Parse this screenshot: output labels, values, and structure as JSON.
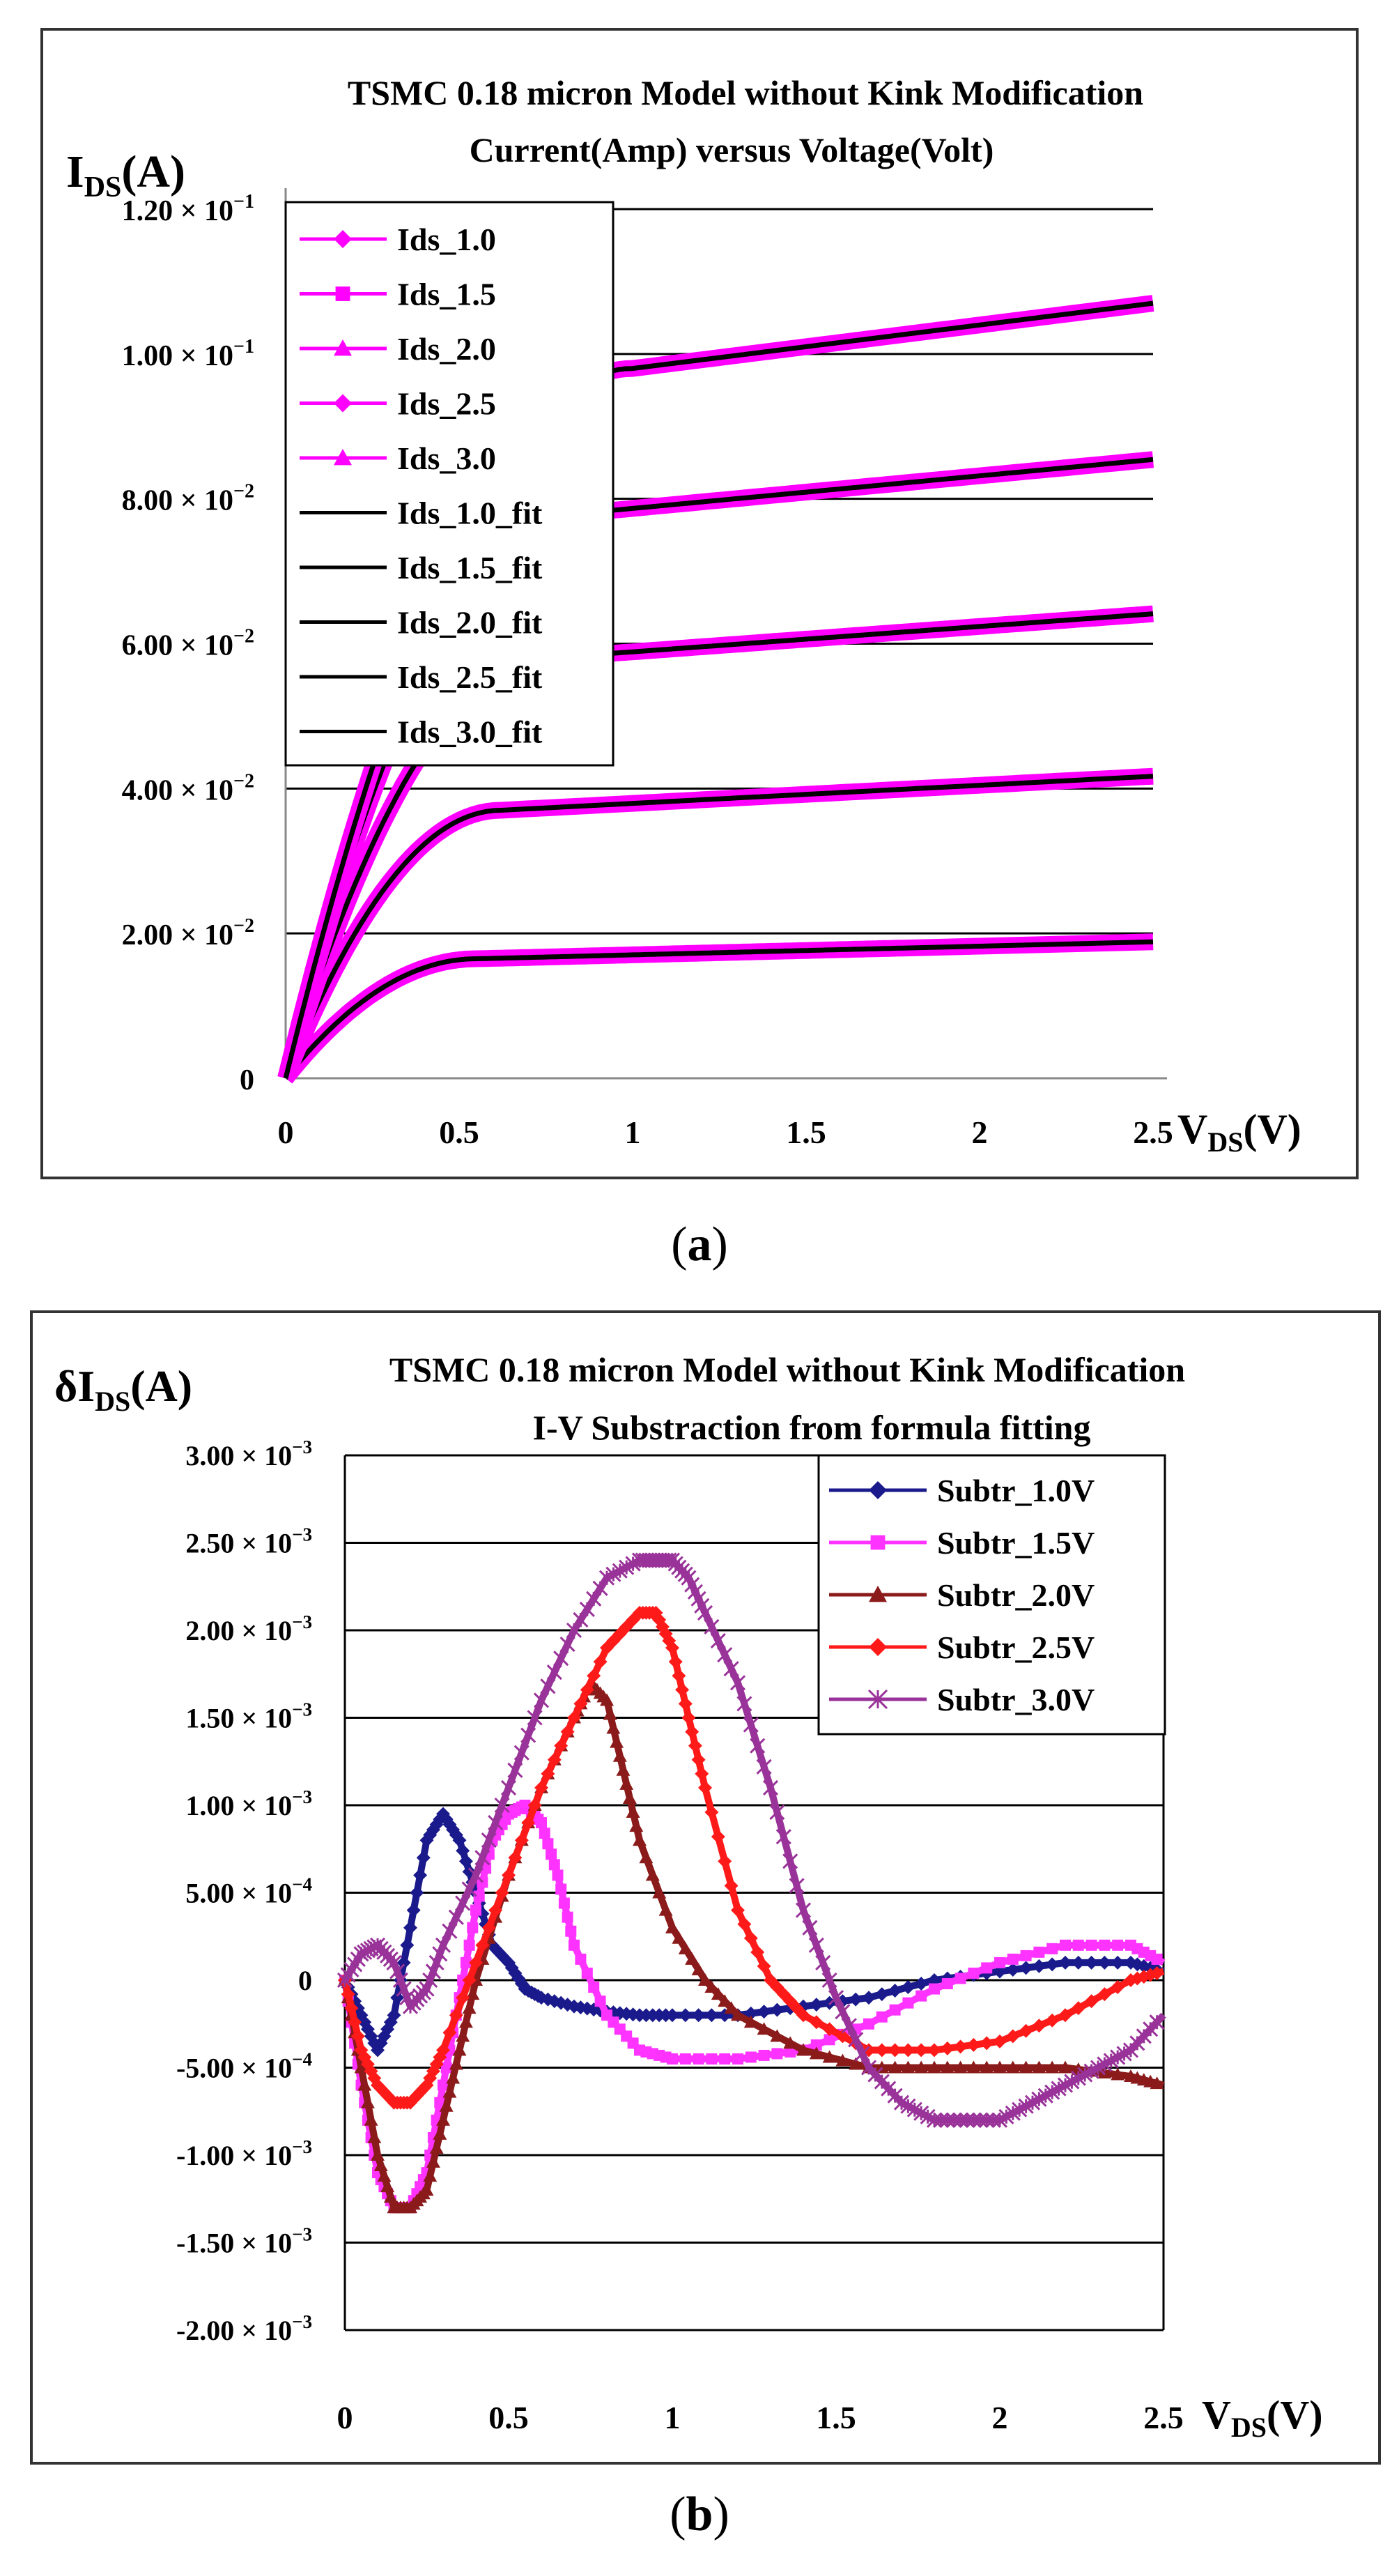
{
  "chart_data": [
    {
      "id": "a",
      "type": "line",
      "caption_open": "(",
      "caption_letter": "a",
      "caption_close": ")",
      "title_lines": [
        "TSMC 0.18 micron Model without Kink Modification",
        "Current(Amp) versus Voltage(Volt)"
      ],
      "ylabel_main": "I",
      "ylabel_sub": "DS",
      "ylabel_unit": "(A)",
      "xlabel_main": "V",
      "xlabel_sub": "DS",
      "xlabel_unit": "(V)",
      "xlim": [
        0,
        2.5
      ],
      "ylim": [
        0,
        0.12
      ],
      "xticks": [
        0,
        0.5,
        1,
        1.5,
        2,
        2.5
      ],
      "xtick_labels": [
        "0",
        "0.5",
        "1",
        "1.5",
        "2",
        "2.5"
      ],
      "yticks": [
        0,
        0.02,
        0.04,
        0.06,
        0.08,
        0.1,
        0.12
      ],
      "ytick_mantissas": [
        "0",
        "2.00 × 10",
        "4.00 × 10",
        "6.00 × 10",
        "8.00 × 10",
        "1.00 × 10",
        "1.20 × 10"
      ],
      "ytick_exponents": [
        "",
        "−2",
        "−2",
        "−2",
        "−2",
        "−1",
        "−1"
      ],
      "gridlines": "horizontal",
      "legend_position": "top-left",
      "series": [
        {
          "name": "Ids_1.0",
          "color": "#ff00ff",
          "marker": "diamond",
          "kind": "data",
          "vsat": 0.55,
          "isat": 0.0165,
          "slope": 0.0012
        },
        {
          "name": "Ids_1.5",
          "color": "#ff00ff",
          "marker": "square",
          "kind": "data",
          "vsat": 0.62,
          "isat": 0.037,
          "slope": 0.0025
        },
        {
          "name": "Ids_2.0",
          "color": "#ff00ff",
          "marker": "triangle",
          "kind": "data",
          "vsat": 0.75,
          "isat": 0.058,
          "slope": 0.0035
        },
        {
          "name": "Ids_2.5",
          "color": "#ff00ff",
          "marker": "diamond",
          "kind": "data",
          "vsat": 0.85,
          "isat": 0.078,
          "slope": 0.0045
        },
        {
          "name": "Ids_3.0",
          "color": "#ff00ff",
          "marker": "triangle",
          "kind": "data",
          "vsat": 1.0,
          "isat": 0.098,
          "slope": 0.006
        },
        {
          "name": "Ids_1.0_fit",
          "color": "#000000",
          "marker": "dash",
          "kind": "fit"
        },
        {
          "name": "Ids_1.5_fit",
          "color": "#000000",
          "marker": "dash",
          "kind": "fit"
        },
        {
          "name": "Ids_2.0_fit",
          "color": "#000000",
          "marker": "dash",
          "kind": "fit"
        },
        {
          "name": "Ids_2.5_fit",
          "color": "#000000",
          "marker": "dash",
          "kind": "fit"
        },
        {
          "name": "Ids_3.0_fit",
          "color": "#000000",
          "marker": "dash",
          "kind": "fit"
        }
      ]
    },
    {
      "id": "b",
      "type": "line",
      "caption_open": "(",
      "caption_letter": "b",
      "caption_close": ")",
      "title_lines": [
        "TSMC 0.18 micron Model without Kink Modification",
        "I-V Substraction from formula fitting"
      ],
      "ylabel_main": "δI",
      "ylabel_sub": "DS",
      "ylabel_unit": "(A)",
      "xlabel_main": "V",
      "xlabel_sub": "DS",
      "xlabel_unit": "(V)",
      "xlim": [
        0,
        2.5
      ],
      "ylim": [
        -0.002,
        0.003
      ],
      "xticks": [
        0,
        0.5,
        1,
        1.5,
        2,
        2.5
      ],
      "xtick_labels": [
        "0",
        "0.5",
        "1",
        "1.5",
        "2",
        "2.5"
      ],
      "yticks": [
        -0.002,
        -0.0015,
        -0.001,
        -0.0005,
        0,
        0.0005,
        0.001,
        0.0015,
        0.002,
        0.0025,
        0.003
      ],
      "ytick_mantissas": [
        "-2.00 × 10",
        "-1.50 × 10",
        "-1.00 × 10",
        "-5.00 × 10",
        "0",
        "5.00 × 10",
        "1.00 × 10",
        "1.50 × 10",
        "2.00 × 10",
        "2.50 × 10",
        "3.00 × 10"
      ],
      "ytick_exponents": [
        "−3",
        "−3",
        "−3",
        "−4",
        "",
        "−4",
        "−3",
        "−3",
        "−3",
        "−3",
        "−3"
      ],
      "gridlines": "horizontal",
      "legend_position": "top-right",
      "series": [
        {
          "name": "Subtr_1.0V",
          "color": "#1a1a8c",
          "marker": "diamond",
          "x": [
            0,
            0.05,
            0.1,
            0.15,
            0.2,
            0.25,
            0.3,
            0.35,
            0.4,
            0.45,
            0.5,
            0.55,
            0.6,
            0.7,
            0.8,
            0.9,
            1.0,
            1.2,
            1.4,
            1.6,
            1.8,
            2.0,
            2.2,
            2.4,
            2.5
          ],
          "y": [
            0,
            -0.0002,
            -0.0004,
            -0.0002,
            0.0003,
            0.0008,
            0.00095,
            0.0008,
            0.0005,
            0.0002,
            0.0001,
            -5e-05,
            -0.0001,
            -0.00015,
            -0.00018,
            -0.0002,
            -0.0002,
            -0.0002,
            -0.00015,
            -0.0001,
            0.0,
            5e-05,
            0.0001,
            0.0001,
            5e-05
          ]
        },
        {
          "name": "Subtr_1.5V",
          "color": "#ff33ff",
          "marker": "square",
          "x": [
            0,
            0.05,
            0.1,
            0.15,
            0.2,
            0.25,
            0.3,
            0.35,
            0.4,
            0.45,
            0.5,
            0.55,
            0.6,
            0.65,
            0.7,
            0.8,
            0.9,
            1.0,
            1.2,
            1.4,
            1.6,
            1.8,
            2.0,
            2.2,
            2.4,
            2.5
          ],
          "y": [
            0,
            -0.0006,
            -0.0011,
            -0.0013,
            -0.0013,
            -0.0011,
            -0.0006,
            -0.0001,
            0.0004,
            0.0008,
            0.00095,
            0.001,
            0.0009,
            0.0006,
            0.0002,
            -0.0002,
            -0.0004,
            -0.00045,
            -0.00045,
            -0.0004,
            -0.00025,
            -5e-05,
            0.0001,
            0.0002,
            0.0002,
            0.0001
          ]
        },
        {
          "name": "Subtr_2.0V",
          "color": "#8b1a1a",
          "marker": "triangle",
          "x": [
            0,
            0.05,
            0.1,
            0.15,
            0.2,
            0.25,
            0.3,
            0.35,
            0.4,
            0.5,
            0.6,
            0.7,
            0.75,
            0.8,
            0.85,
            0.9,
            1.0,
            1.1,
            1.2,
            1.4,
            1.6,
            1.8,
            2.0,
            2.2,
            2.4,
            2.5
          ],
          "y": [
            0,
            -0.0005,
            -0.001,
            -0.0013,
            -0.0013,
            -0.0012,
            -0.0008,
            -0.0004,
            0.0,
            0.0006,
            0.0011,
            0.0015,
            0.0017,
            0.0016,
            0.0012,
            0.0008,
            0.0003,
            0.0,
            -0.0002,
            -0.0004,
            -0.0005,
            -0.0005,
            -0.0005,
            -0.0005,
            -0.00055,
            -0.0006
          ]
        },
        {
          "name": "Subtr_2.5V",
          "color": "#ff1a1a",
          "marker": "diamond",
          "x": [
            0,
            0.05,
            0.1,
            0.15,
            0.2,
            0.25,
            0.3,
            0.4,
            0.5,
            0.6,
            0.7,
            0.8,
            0.9,
            0.95,
            1.0,
            1.05,
            1.1,
            1.2,
            1.3,
            1.4,
            1.6,
            1.8,
            2.0,
            2.2,
            2.4,
            2.5
          ],
          "y": [
            0,
            -0.0004,
            -0.0006,
            -0.0007,
            -0.0007,
            -0.0006,
            -0.0004,
            0.0001,
            0.0006,
            0.0011,
            0.0015,
            0.0019,
            0.0021,
            0.0021,
            0.0019,
            0.0015,
            0.0011,
            0.0004,
            0.0,
            -0.0002,
            -0.0004,
            -0.0004,
            -0.00035,
            -0.0002,
            0.0,
            5e-05
          ]
        },
        {
          "name": "Subtr_3.0V",
          "color": "#993399",
          "marker": "star",
          "x": [
            0,
            0.05,
            0.1,
            0.15,
            0.2,
            0.25,
            0.3,
            0.4,
            0.5,
            0.6,
            0.7,
            0.8,
            0.9,
            0.95,
            1.0,
            1.05,
            1.1,
            1.2,
            1.3,
            1.4,
            1.5,
            1.6,
            1.7,
            1.8,
            1.9,
            2.0,
            2.1,
            2.2,
            2.3,
            2.4,
            2.5
          ],
          "y": [
            0,
            0.00015,
            0.0002,
            0.0001,
            -0.00015,
            -5e-05,
            0.0002,
            0.0006,
            0.0011,
            0.0016,
            0.002,
            0.0023,
            0.0024,
            0.0024,
            0.0024,
            0.0023,
            0.0021,
            0.0017,
            0.0011,
            0.0004,
            -0.0001,
            -0.0005,
            -0.0007,
            -0.0008,
            -0.0008,
            -0.0008,
            -0.0007,
            -0.0006,
            -0.0005,
            -0.0004,
            -0.0002
          ]
        }
      ]
    }
  ]
}
